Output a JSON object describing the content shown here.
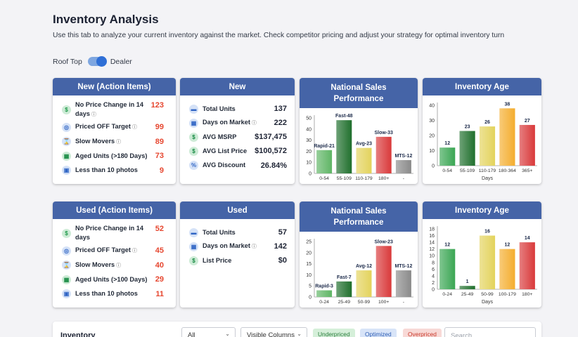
{
  "page": {
    "title": "Inventory Analysis",
    "subtitle": "Use this tab to analyze your current inventory against the market. Check competitor pricing and adjust your strategy for optimal inventory turn",
    "toggle_left": "Roof Top",
    "toggle_right": "Dealer"
  },
  "new_action": {
    "title": "New (Action Items)",
    "items": [
      {
        "label_line1": "No Price Change in 14",
        "label_line2": "days",
        "value": "123",
        "icon": "dollar-icon"
      },
      {
        "label": "Priced OFF Target",
        "value": "99",
        "icon": "target-icon"
      },
      {
        "label": "Slow Movers",
        "value": "89",
        "icon": "hourglass-icon"
      },
      {
        "label": "Aged Units (>180 Days)",
        "value": "73",
        "icon": "calendar-icon"
      },
      {
        "label": "Less than 10 photos",
        "value": "9",
        "icon": "photo-icon"
      }
    ]
  },
  "new_summary": {
    "title": "New",
    "items": [
      {
        "label": "Total Units",
        "value": "137",
        "icon": "truck-icon"
      },
      {
        "label": "Days on Market",
        "value": "222",
        "icon": "calendar-icon"
      },
      {
        "label": "AVG MSRP",
        "value": "$137,475",
        "icon": "dollar-icon"
      },
      {
        "label": "AVG List Price",
        "value": "$100,572",
        "icon": "dollar-icon"
      },
      {
        "label": "AVG Discount",
        "value": "26.84%",
        "icon": "discount-icon"
      }
    ]
  },
  "used_action": {
    "title": "Used (Action Items)",
    "items": [
      {
        "label_line1": "No Price Change in 14",
        "label_line2": "days",
        "value": "52",
        "icon": "dollar-icon"
      },
      {
        "label": "Priced OFF Target",
        "value": "45",
        "icon": "target-icon"
      },
      {
        "label": "Slow Movers",
        "value": "40",
        "icon": "hourglass-icon"
      },
      {
        "label": "Aged Units (>100 Days)",
        "value": "29",
        "icon": "calendar-icon"
      },
      {
        "label": "Less than 10 photos",
        "value": "11",
        "icon": "photo-icon"
      }
    ]
  },
  "used_summary": {
    "title": "Used",
    "items": [
      {
        "label": "Total Units",
        "value": "57",
        "icon": "truck-icon"
      },
      {
        "label": "Days on Market",
        "value": "142",
        "icon": "calendar-icon"
      },
      {
        "label": "List Price",
        "value": "$0",
        "icon": "dollar-icon"
      }
    ]
  },
  "chart_data": [
    {
      "id": "new-sales",
      "type": "bar",
      "title": "National Sales Performance",
      "categories": [
        "0-54",
        "55-109",
        "110-179",
        "180+",
        "-"
      ],
      "values": [
        21,
        48,
        23,
        33,
        12
      ],
      "labels": [
        "Rapid-21",
        "Fast-48",
        "Avg-23",
        "Slow-33",
        "MTS-12"
      ],
      "ylim": [
        0,
        50
      ],
      "yticks": [
        0,
        10,
        20,
        30,
        40,
        50
      ],
      "xlabel": "",
      "colors": [
        "#5fb565",
        "#1f6f2c",
        "#e3d35c",
        "#d9393a",
        "#8a8a8a"
      ]
    },
    {
      "id": "new-age",
      "type": "bar",
      "title": "Inventory Age",
      "categories": [
        "0-54",
        "55-109",
        "110-179",
        "180-364",
        "365+"
      ],
      "values": [
        12,
        23,
        26,
        38,
        27
      ],
      "labels": [
        "12",
        "23",
        "26",
        "38",
        "27"
      ],
      "ylim": [
        0,
        40
      ],
      "yticks": [
        0,
        10,
        20,
        30,
        40
      ],
      "xlabel": "Days",
      "colors": [
        "#3aa653",
        "#1f6f2c",
        "#e3d35c",
        "#f4ad2e",
        "#d9393a"
      ]
    },
    {
      "id": "used-sales",
      "type": "bar",
      "title": "National Sales Performance",
      "categories": [
        "0-24",
        "25-49",
        "50-99",
        "100+",
        "-"
      ],
      "values": [
        3,
        7,
        12,
        23,
        12
      ],
      "labels": [
        "Rapid-3",
        "Fast-7",
        "Avg-12",
        "Slow-23",
        "MTS-12"
      ],
      "ylim": [
        0,
        25
      ],
      "yticks": [
        0,
        5,
        10,
        15,
        20,
        25
      ],
      "xlabel": "",
      "colors": [
        "#5fb565",
        "#1f6f2c",
        "#e3d35c",
        "#d9393a",
        "#8a8a8a"
      ]
    },
    {
      "id": "used-age",
      "type": "bar",
      "title": "Inventory Age",
      "categories": [
        "0-24",
        "25-49",
        "50-99",
        "100-179",
        "180+"
      ],
      "values": [
        12,
        1,
        16,
        12,
        14
      ],
      "labels": [
        "12",
        "1",
        "16",
        "12",
        "14"
      ],
      "ylim": [
        0,
        18
      ],
      "yticks": [
        0,
        2,
        4,
        6,
        8,
        10,
        12,
        14,
        16,
        18
      ],
      "xlabel": "Days",
      "colors": [
        "#3aa653",
        "#1f6f2c",
        "#e3d35c",
        "#f4ad2e",
        "#d9393a"
      ]
    }
  ],
  "toolbar": {
    "title": "Inventory",
    "filter_value": "All",
    "columns_label": "Visible Columns",
    "chips": [
      "Underpriced",
      "Optimized",
      "Overpriced"
    ],
    "search_placeholder": "Search"
  },
  "colors": {
    "header": "#4564a7",
    "alert": "#e6462f",
    "chip_under_bg": "#d5efd9",
    "chip_opt_bg": "#d8e4f8",
    "chip_over_bg": "#f8d9d6"
  }
}
